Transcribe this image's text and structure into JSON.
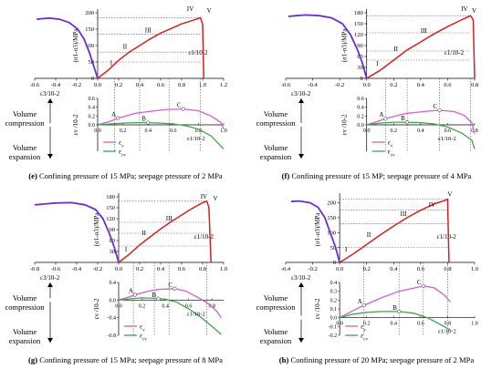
{
  "chart_data": [
    {
      "id": "e",
      "type": "line",
      "caption_letter": "(e)",
      "caption": "Confining pressure of 15 MPa; seepage pressure of 2 MPa",
      "top": {
        "xlim": [
          -0.6,
          1.2
        ],
        "ylim": [
          0,
          200
        ],
        "xticks": [
          "-0.6",
          "-0.4",
          "-0.2",
          "0.0",
          "0.2",
          "0.4",
          "0.6",
          "0.8",
          "1.0",
          "1.2"
        ],
        "yticks": [
          "0",
          "50",
          "100",
          "150",
          "200"
        ],
        "ylabel": "(σ1-σ3)/MPa",
        "xlabel_left": "ε3/10-2",
        "xlabel_right": "ε1/10-2",
        "stage_labels": [
          {
            "t": "I",
            "x": 0.12,
            "y": 35
          },
          {
            "t": "II",
            "x": 0.24,
            "y": 85
          },
          {
            "t": "III",
            "x": 0.45,
            "y": 135
          },
          {
            "t": "IV",
            "x": 0.85,
            "y": 200
          },
          {
            "t": "V",
            "x": 1.04,
            "y": 195
          }
        ],
        "radial": [
          [
            0,
            0
          ],
          [
            -0.04,
            40
          ],
          [
            -0.08,
            80
          ],
          [
            -0.13,
            120
          ],
          [
            -0.19,
            150
          ],
          [
            -0.27,
            170
          ],
          [
            -0.36,
            180
          ],
          [
            -0.46,
            184
          ],
          [
            -0.53,
            182
          ],
          [
            -0.58,
            180
          ]
        ],
        "axial": [
          [
            0,
            0
          ],
          [
            0.1,
            25
          ],
          [
            0.2,
            55
          ],
          [
            0.3,
            80
          ],
          [
            0.4,
            100
          ],
          [
            0.5,
            120
          ],
          [
            0.6,
            138
          ],
          [
            0.7,
            152
          ],
          [
            0.8,
            166
          ],
          [
            0.9,
            176
          ],
          [
            0.98,
            185
          ],
          [
            1.0,
            165
          ],
          [
            1.01,
            0
          ]
        ],
        "guide_v": [
          0.16,
          0.4,
          0.68,
          0.98
        ],
        "guide_h": [
          50,
          80,
          135,
          185
        ]
      },
      "vol": {
        "xlim": [
          0,
          1.0
        ],
        "ylim": [
          -0.6,
          0.6
        ],
        "xticks": [
          "0.0",
          "0.2",
          "0.4",
          "0.6",
          "0.8",
          "1.0"
        ],
        "yticks": [
          "0.0",
          "0.2",
          "0.4",
          "0.6"
        ],
        "points": [
          {
            "t": "A",
            "x": 0.16
          },
          {
            "t": "B",
            "x": 0.4
          },
          {
            "t": "C",
            "x": 0.68
          }
        ],
        "ev": [
          [
            0,
            0
          ],
          [
            0.1,
            0.08
          ],
          [
            0.16,
            0.15
          ],
          [
            0.3,
            0.26
          ],
          [
            0.4,
            0.3
          ],
          [
            0.55,
            0.35
          ],
          [
            0.68,
            0.36
          ],
          [
            0.8,
            0.32
          ],
          [
            0.9,
            0.2
          ],
          [
            0.98,
            0.05
          ],
          [
            1.0,
            -0.1
          ]
        ],
        "ecv": [
          [
            0,
            0
          ],
          [
            0.1,
            0.02
          ],
          [
            0.2,
            0.04
          ],
          [
            0.3,
            0.05
          ],
          [
            0.4,
            0.05
          ],
          [
            0.5,
            0.04
          ],
          [
            0.6,
            0.02
          ],
          [
            0.7,
            -0.02
          ],
          [
            0.8,
            -0.1
          ],
          [
            0.9,
            -0.25
          ],
          [
            1.0,
            -0.55
          ]
        ]
      }
    },
    {
      "id": "f",
      "type": "line",
      "caption_letter": "(f)",
      "caption": "Confining pressure of 15 MP; seepage pressure of 4 MPa",
      "top": {
        "xlim": [
          -0.6,
          0.8
        ],
        "ylim": [
          0,
          180
        ],
        "xticks": [
          "-0.6",
          "-0.4",
          "-0.2",
          "0.0",
          "0.2",
          "0.4",
          "0.6",
          "0.8"
        ],
        "yticks": [
          "0",
          "30",
          "60",
          "90",
          "120",
          "150",
          "180"
        ],
        "ylabel": "(σ1-σ3)/MPa",
        "xlabel_left": "ε3/10-2",
        "xlabel_right": "ε1/10-2",
        "stage_labels": [
          {
            "t": "I",
            "x": 0.07,
            "y": 30
          },
          {
            "t": "II",
            "x": 0.2,
            "y": 70
          },
          {
            "t": "III",
            "x": 0.4,
            "y": 120
          },
          {
            "t": "IV",
            "x": 0.7,
            "y": 180
          },
          {
            "t": "V",
            "x": 0.78,
            "y": 175
          }
        ],
        "radial": [
          [
            0,
            0
          ],
          [
            -0.03,
            40
          ],
          [
            -0.07,
            80
          ],
          [
            -0.12,
            120
          ],
          [
            -0.18,
            150
          ],
          [
            -0.26,
            166
          ],
          [
            -0.35,
            172
          ],
          [
            -0.45,
            174
          ],
          [
            -0.52,
            172
          ],
          [
            -0.58,
            170
          ]
        ],
        "axial": [
          [
            0,
            0
          ],
          [
            0.1,
            22
          ],
          [
            0.2,
            50
          ],
          [
            0.3,
            78
          ],
          [
            0.4,
            100
          ],
          [
            0.5,
            122
          ],
          [
            0.6,
            142
          ],
          [
            0.7,
            160
          ],
          [
            0.77,
            172
          ],
          [
            0.79,
            160
          ],
          [
            0.8,
            0
          ]
        ],
        "guide_v": [
          0.14,
          0.3,
          0.54,
          0.77
        ],
        "guide_h": [
          50,
          75,
          125,
          172
        ]
      },
      "vol": {
        "xlim": [
          0,
          0.8
        ],
        "ylim": [
          -0.6,
          0.6
        ],
        "xticks": [
          "0.0",
          "0.2",
          "0.4",
          "0.6",
          "0.8"
        ],
        "yticks": [
          "0.0",
          "0.2",
          "0.4",
          "0.6"
        ],
        "points": [
          {
            "t": "A",
            "x": 0.14
          },
          {
            "t": "B",
            "x": 0.3
          },
          {
            "t": "C",
            "x": 0.54
          }
        ],
        "ev": [
          [
            0,
            0
          ],
          [
            0.1,
            0.1
          ],
          [
            0.14,
            0.14
          ],
          [
            0.25,
            0.23
          ],
          [
            0.3,
            0.26
          ],
          [
            0.45,
            0.31
          ],
          [
            0.54,
            0.33
          ],
          [
            0.65,
            0.3
          ],
          [
            0.72,
            0.22
          ],
          [
            0.78,
            0.05
          ],
          [
            0.8,
            -0.2
          ]
        ],
        "ecv": [
          [
            0,
            0
          ],
          [
            0.1,
            0.04
          ],
          [
            0.2,
            0.06
          ],
          [
            0.3,
            0.06
          ],
          [
            0.4,
            0.05
          ],
          [
            0.5,
            0.02
          ],
          [
            0.6,
            -0.05
          ],
          [
            0.7,
            -0.18
          ],
          [
            0.78,
            -0.35
          ],
          [
            0.8,
            -0.55
          ]
        ]
      }
    },
    {
      "id": "g",
      "type": "line",
      "caption_letter": "(g)",
      "caption": "Confining pressure of 15 MPa; seepage pressure of 8 MPa",
      "top": {
        "xlim": [
          -0.8,
          1.0
        ],
        "ylim": [
          0,
          180
        ],
        "xticks": [
          "-0.8",
          "-0.6",
          "-0.4",
          "-0.2",
          "0.0",
          "0.2",
          "0.4",
          "0.6",
          "0.8",
          "1.0"
        ],
        "yticks": [
          "30",
          "60",
          "90",
          "120",
          "150",
          "180"
        ],
        "ylabel": "(σ1-σ3)/MPa",
        "xlabel_left": "ε3/10-2",
        "xlabel_right": "ε1/10-2",
        "stage_labels": [
          {
            "t": "I",
            "x": 0.06,
            "y": 25
          },
          {
            "t": "II",
            "x": 0.22,
            "y": 70
          },
          {
            "t": "III",
            "x": 0.45,
            "y": 110
          },
          {
            "t": "IV",
            "x": 0.78,
            "y": 170
          },
          {
            "t": "V",
            "x": 0.9,
            "y": 165
          }
        ],
        "radial": [
          [
            0,
            0
          ],
          [
            -0.04,
            40
          ],
          [
            -0.09,
            80
          ],
          [
            -0.15,
            120
          ],
          [
            -0.22,
            145
          ],
          [
            -0.32,
            158
          ],
          [
            -0.45,
            164
          ],
          [
            -0.6,
            163
          ],
          [
            -0.72,
            160
          ],
          [
            -0.8,
            158
          ]
        ],
        "axial": [
          [
            0,
            0
          ],
          [
            0.1,
            22
          ],
          [
            0.2,
            48
          ],
          [
            0.3,
            70
          ],
          [
            0.4,
            92
          ],
          [
            0.5,
            112
          ],
          [
            0.6,
            130
          ],
          [
            0.7,
            148
          ],
          [
            0.8,
            164
          ],
          [
            0.84,
            168
          ],
          [
            0.86,
            150
          ],
          [
            0.88,
            0
          ]
        ],
        "guide_v": [
          0.14,
          0.34,
          0.48,
          0.84
        ],
        "guide_h": [
          45,
          80,
          110,
          168
        ]
      },
      "vol": {
        "xlim": [
          0,
          0.9
        ],
        "ylim": [
          -0.8,
          0.4
        ],
        "xticks": [
          "0.0",
          "0.2",
          "0.4",
          "0.6",
          "0.8"
        ],
        "yticks": [
          "-0.8",
          "-0.4",
          "0.0",
          "0.4"
        ],
        "points": [
          {
            "t": "A",
            "x": 0.14
          },
          {
            "t": "B",
            "x": 0.34
          },
          {
            "t": "C",
            "x": 0.48
          }
        ],
        "ev": [
          [
            0,
            0
          ],
          [
            0.1,
            0.08
          ],
          [
            0.14,
            0.12
          ],
          [
            0.25,
            0.2
          ],
          [
            0.34,
            0.24
          ],
          [
            0.48,
            0.26
          ],
          [
            0.58,
            0.2
          ],
          [
            0.68,
            0.06
          ],
          [
            0.78,
            -0.1
          ],
          [
            0.84,
            -0.25
          ],
          [
            0.88,
            -0.4
          ]
        ],
        "ecv": [
          [
            0,
            0
          ],
          [
            0.1,
            0.03
          ],
          [
            0.2,
            0.05
          ],
          [
            0.3,
            0.04
          ],
          [
            0.4,
            0.02
          ],
          [
            0.5,
            -0.05
          ],
          [
            0.6,
            -0.2
          ],
          [
            0.7,
            -0.38
          ],
          [
            0.8,
            -0.6
          ],
          [
            0.88,
            -0.78
          ]
        ]
      }
    },
    {
      "id": "h",
      "type": "line",
      "caption_letter": "(h)",
      "caption": "Confining pressure of 20 MPa; seepage pressure of 2 MPa",
      "top": {
        "xlim": [
          -0.4,
          1.0
        ],
        "ylim": [
          0,
          220
        ],
        "xticks": [
          "-0.4",
          "-0.2",
          "0.0",
          "0.2",
          "0.4",
          "0.6",
          "0.8",
          "1.0"
        ],
        "yticks": [
          "0",
          "50",
          "100",
          "150",
          "200"
        ],
        "ylabel": "(σ1-σ3)/MPa",
        "xlabel_left": "ε3/10-2",
        "xlabel_right": "ε1/10-2",
        "stage_labels": [
          {
            "t": "I",
            "x": 0.04,
            "y": 30
          },
          {
            "t": "II",
            "x": 0.2,
            "y": 80
          },
          {
            "t": "III",
            "x": 0.45,
            "y": 150
          },
          {
            "t": "IV",
            "x": 0.66,
            "y": 180
          },
          {
            "t": "V",
            "x": 0.8,
            "y": 215
          }
        ],
        "radial": [
          [
            0,
            0
          ],
          [
            -0.03,
            50
          ],
          [
            -0.07,
            100
          ],
          [
            -0.11,
            150
          ],
          [
            -0.16,
            185
          ],
          [
            -0.22,
            200
          ],
          [
            -0.3,
            206
          ],
          [
            -0.36,
            204
          ]
        ],
        "axial": [
          [
            0,
            0
          ],
          [
            0.1,
            28
          ],
          [
            0.2,
            60
          ],
          [
            0.3,
            92
          ],
          [
            0.4,
            122
          ],
          [
            0.5,
            150
          ],
          [
            0.6,
            175
          ],
          [
            0.7,
            196
          ],
          [
            0.78,
            208
          ],
          [
            0.8,
            212
          ],
          [
            0.81,
            0
          ]
        ],
        "guide_v": [
          0.18,
          0.44,
          0.62,
          0.8
        ],
        "guide_h": [
          50,
          130,
          175,
          212
        ]
      },
      "vol": {
        "xlim": [
          0,
          1.0
        ],
        "ylim": [
          -0.2,
          0.4
        ],
        "xticks": [
          "0.0",
          "0.2",
          "0.4",
          "0.6",
          "0.8",
          "1.0"
        ],
        "yticks": [
          "-0.2",
          "-0.1",
          "0.0",
          "0.1",
          "0.2",
          "0.3",
          "0.4"
        ],
        "points": [
          {
            "t": "A",
            "x": 0.18
          },
          {
            "t": "B",
            "x": 0.44
          },
          {
            "t": "C",
            "x": 0.62
          }
        ],
        "ev": [
          [
            0,
            0
          ],
          [
            0.1,
            0.08
          ],
          [
            0.18,
            0.14
          ],
          [
            0.3,
            0.22
          ],
          [
            0.44,
            0.3
          ],
          [
            0.62,
            0.36
          ],
          [
            0.7,
            0.34
          ],
          [
            0.78,
            0.25
          ],
          [
            0.82,
            0.18
          ]
        ],
        "ecv": [
          [
            0,
            0
          ],
          [
            0.1,
            0.04
          ],
          [
            0.2,
            0.06
          ],
          [
            0.3,
            0.07
          ],
          [
            0.44,
            0.07
          ],
          [
            0.55,
            0.05
          ],
          [
            0.65,
            0.0
          ],
          [
            0.75,
            -0.08
          ],
          [
            0.82,
            -0.14
          ]
        ]
      }
    }
  ],
  "labels": {
    "vol_compression": "Volume compression",
    "vol_expansion": "Volume expansion",
    "vol_ylabel": "εv /10-2",
    "vol_xlabel": "ε1/10-2",
    "legend_ev": "εv",
    "legend_ecv": "εcv"
  },
  "colors": {
    "radial": "#6a2fd0",
    "axial": "#d62020",
    "ev": "#d15fcf",
    "ecv": "#3fa34d",
    "guide": "#555555"
  }
}
